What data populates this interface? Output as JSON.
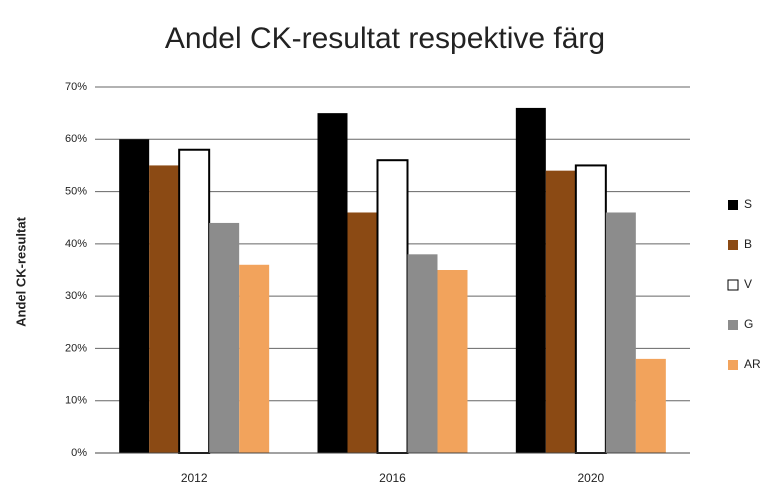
{
  "chart_data": {
    "type": "bar",
    "title": "Andel CK-resultat respektive färg",
    "y_label": "Andel CK-resultat",
    "categories": [
      "2012",
      "2016",
      "2020"
    ],
    "series": [
      {
        "name": "S",
        "color": "#000000",
        "values": [
          60,
          65,
          66
        ]
      },
      {
        "name": "B",
        "color": "#8b4a14",
        "values": [
          55,
          46,
          54
        ]
      },
      {
        "name": "V",
        "color": "#ffffff",
        "values": [
          58,
          56,
          55
        ]
      },
      {
        "name": "G",
        "color": "#8c8c8c",
        "values": [
          44,
          38,
          46
        ]
      },
      {
        "name": "AR",
        "color": "#f2a35c",
        "values": [
          36,
          35,
          18
        ]
      }
    ],
    "ylim": [
      0,
      70
    ],
    "yticks": [
      {
        "value": 0,
        "label": "0%"
      },
      {
        "value": 10,
        "label": "10%"
      },
      {
        "value": 20,
        "label": "20%"
      },
      {
        "value": 30,
        "label": "30%"
      },
      {
        "value": 40,
        "label": "40%"
      },
      {
        "value": 50,
        "label": "50%"
      },
      {
        "value": 60,
        "label": "60%"
      },
      {
        "value": 70,
        "label": "70%"
      }
    ],
    "grid": true,
    "legend": "right"
  }
}
